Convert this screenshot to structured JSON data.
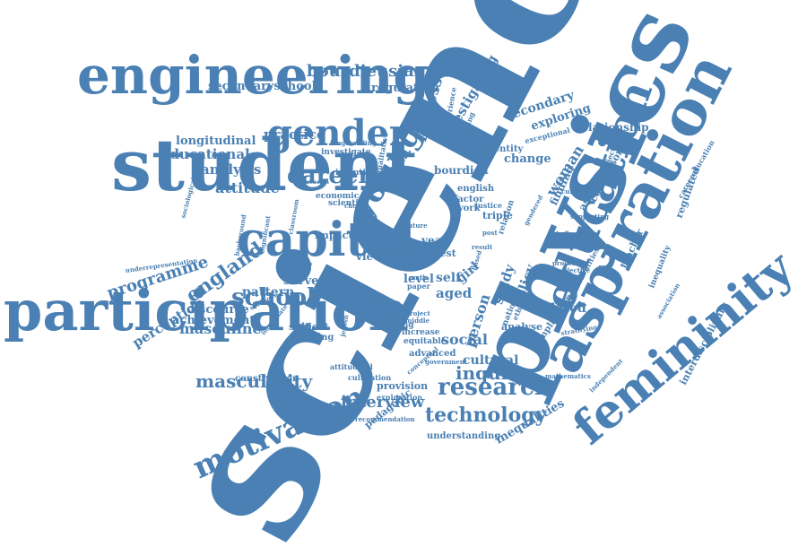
{
  "color": "#4a80b3",
  "words": {
    "science": "science",
    "physics": "physics",
    "student": "student",
    "participation": "participation",
    "aspiration": "aspiration",
    "education": "education",
    "engineering": "engineering",
    "femininity": "femininity",
    "capital": "capital",
    "gender": "gender",
    "young": "young",
    "motivation": "motivation",
    "research": "research",
    "school": "school",
    "career": "career",
    "masculinity": "masculinity",
    "technology": "technology",
    "inquiry": "inquiry",
    "interview": "interview",
    "england": "england",
    "programme": "programme",
    "bourdieusian": "bourdieusian",
    "secondaryschool": "secondaryschool",
    "regulation": "regulation",
    "processes": "processes",
    "investigating": "investigating",
    "secondary": "secondary",
    "exploring": "exploring",
    "relationship": "relationship",
    "educational": "educational",
    "longitudinal": "longitudinal",
    "practice": "practice",
    "analysis": "analysis",
    "attitude": "attitude",
    "survey": "survey",
    "pattern": "pattern",
    "stem": "stem",
    "more": "more",
    "perception": "perception",
    "discourse": "discourse",
    "achievement": "achievement",
    "masculine": "masculine",
    "subject": "subject",
    "choosing": "choosing",
    "construction": "construction",
    "provision": "provision",
    "pedagogic": "pedagogic",
    "understanding": "understanding",
    "inequalities": "inequalities",
    "cultural": "cultural",
    "social": "social",
    "advanced": "advanced",
    "person": "person",
    "woman": "woman",
    "finding": "finding",
    "aspire": "aspire",
    "compulsory": "compulsory",
    "teacher": "teacher",
    "regulated": "regulated",
    "careereducation": "careereducation",
    "interdisciplinary": "interdisciplinary",
    "related": "related",
    "implication": "implication",
    "analyse": "analyse",
    "aged": "aged",
    "self": "self",
    "girl": "girl",
    "year": "year",
    "crest": "crest",
    "factor": "factor",
    "work": "work",
    "triple": "triple",
    "view": "view",
    "level": "level",
    "data": "data",
    "identity": "identity",
    "change": "change",
    "bourdieu": "bourdieu",
    "economic": "economic",
    "scientist": "scientist",
    "investigate": "investigate",
    "intention": "intention",
    "impact": "impact",
    "attitudinal": "attitudinal",
    "cultivation": "cultivation",
    "exploration": "exploration",
    "briefing": "briefing",
    "increase": "increase",
    "equitable": "equitable",
    "underrepresentation": "underrepresentation",
    "study": "study",
    "policy": "policy",
    "english": "english",
    "justice": "justice",
    "equality": "equality",
    "equity": "equity",
    "relation": "relation",
    "national": "national",
    "ethnicity": "ethnicity",
    "influence": "influence",
    "identities": "identities",
    "inequality": "inequality",
    "qualitative": "qualitative",
    "experience": "experience",
    "learning": "learning",
    "exceptional": "exceptional",
    "cultivating": "cultivating",
    "supporting": "supporting",
    "trajectories": "trajectories",
    "background": "background",
    "significant": "significant",
    "evidence": "evidence",
    "gendered": "gendered",
    "based": "based",
    "project": "project",
    "middle": "middle",
    "paper": "paper",
    "math": "math",
    "jewish": "jewish",
    "immediate": "immediate",
    "independent": "independent",
    "association": "association",
    "stratifying": "stratifying",
    "government": "government",
    "longstanding": "longstanding",
    "classroom": "classroom",
    "sociological": "sociological",
    "conceptual": "conceptual",
    "recommendation": "recommendation",
    "selective": "selective",
    "process": "process",
    "future": "future",
    "choice": "choice",
    "mathematics": "mathematics",
    "dimension": "dimension",
    "post": "post",
    "result": "result"
  }
}
